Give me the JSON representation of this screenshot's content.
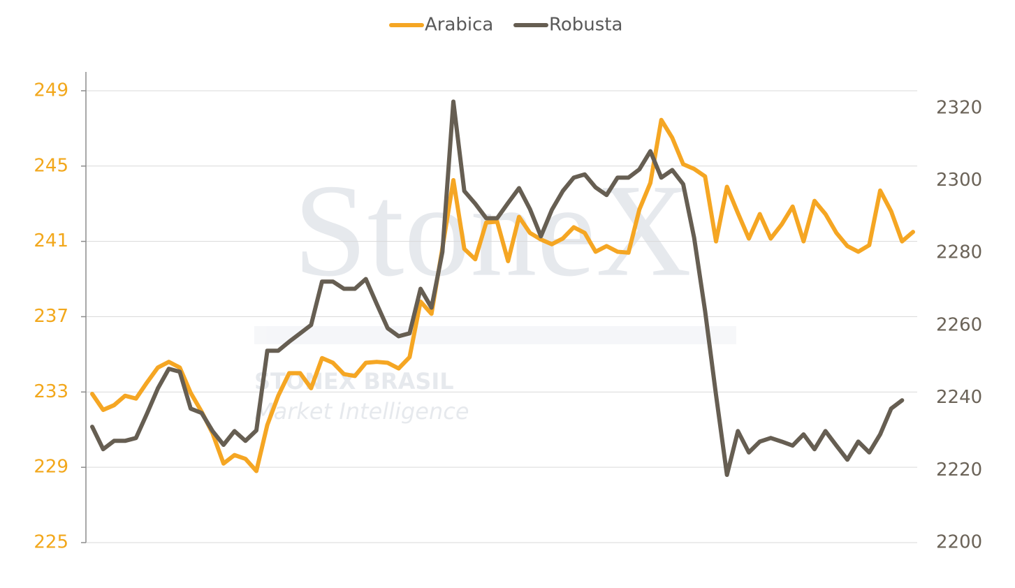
{
  "chart_data": {
    "type": "line",
    "watermark": {
      "brand": "StoneX",
      "division": "STONEX BRASIL",
      "tagline": "Market Intelligence"
    },
    "categories": [
      null,
      null,
      null,
      null,
      null,
      null,
      null,
      null,
      null,
      null,
      null,
      null,
      null,
      null,
      null,
      null,
      null,
      null,
      null,
      null,
      null,
      null,
      null,
      null,
      null,
      null,
      null,
      null,
      null,
      null,
      null,
      null,
      null,
      null,
      null,
      null,
      null,
      null,
      null,
      null,
      null,
      null,
      null,
      null,
      null,
      null,
      null,
      null,
      null,
      null,
      null,
      null,
      null,
      null,
      null,
      null,
      null,
      null,
      null,
      null,
      null,
      null,
      null,
      null,
      null,
      null,
      null,
      null,
      null,
      null,
      null,
      null,
      null,
      null,
      null,
      null
    ],
    "series": [
      {
        "name": "Arabica",
        "color": "#f5a623",
        "axis": "y",
        "values": [
          232.9,
          232.05,
          232.3,
          232.8,
          232.65,
          233.5,
          234.3,
          234.6,
          234.3,
          232.95,
          231.95,
          230.8,
          229.2,
          229.65,
          229.45,
          228.8,
          231.25,
          232.8,
          234.0,
          234.0,
          233.2,
          234.8,
          234.55,
          233.95,
          233.85,
          234.55,
          234.6,
          234.55,
          234.25,
          234.85,
          237.8,
          237.15,
          240.65,
          244.25,
          240.6,
          240.05,
          242.0,
          242.05,
          239.95,
          242.3,
          241.45,
          241.1,
          240.85,
          241.15,
          241.75,
          241.45,
          240.45,
          240.75,
          240.45,
          240.4,
          242.7,
          244.1,
          247.45,
          246.5,
          245.1,
          244.85,
          244.45,
          241.0,
          243.9,
          242.5,
          241.15,
          242.45,
          241.15,
          241.9,
          242.85,
          241.0,
          243.15,
          242.45,
          241.45,
          240.75,
          240.45,
          240.8,
          243.7,
          242.6,
          241.0,
          241.5
        ]
      },
      {
        "name": "Robusta",
        "color": "#665e52",
        "axis": "y2",
        "values": [
          2232,
          2225.8,
          2228.1,
          2228.1,
          2228.9,
          2235.6,
          2242.6,
          2248,
          2247.2,
          2237,
          2235.8,
          2230.8,
          2227,
          2230.8,
          2228.1,
          2231,
          2253,
          2253,
          2255.5,
          2257.8,
          2260.1,
          2272.1,
          2272.1,
          2270.1,
          2270.1,
          2272.8,
          2265.9,
          2259.2,
          2257,
          2257.8,
          2270.1,
          2264.9,
          2280.3,
          2321.8,
          2297.1,
          2293.6,
          2289.6,
          2289.6,
          2293.8,
          2297.9,
          2292.1,
          2284.6,
          2291.9,
          2297.1,
          2300.8,
          2301.7,
          2298.1,
          2296,
          2300.8,
          2300.8,
          2303.1,
          2308.1,
          2300.8,
          2302.9,
          2299,
          2284.2,
          2264,
          2240.8,
          2218.7,
          2230.8,
          2224.9,
          2227.9,
          2228.9,
          2227.9,
          2226.8,
          2229.9,
          2225.8,
          2230.8,
          2226.8,
          2222.9,
          2227.9,
          2224.9,
          2229.9,
          2237,
          2239.3,
          null
        ]
      }
    ],
    "ylim": [
      225,
      250
    ],
    "yticks": [
      225,
      229,
      233,
      237,
      241,
      245,
      249
    ],
    "ytick_color": "#f2a71b",
    "y2lim": [
      2200,
      2330
    ],
    "y2ticks": [
      2200,
      2220,
      2240,
      2260,
      2280,
      2300,
      2320
    ],
    "y2tick_color": "#6b6358",
    "grid": true,
    "legend": "top"
  }
}
